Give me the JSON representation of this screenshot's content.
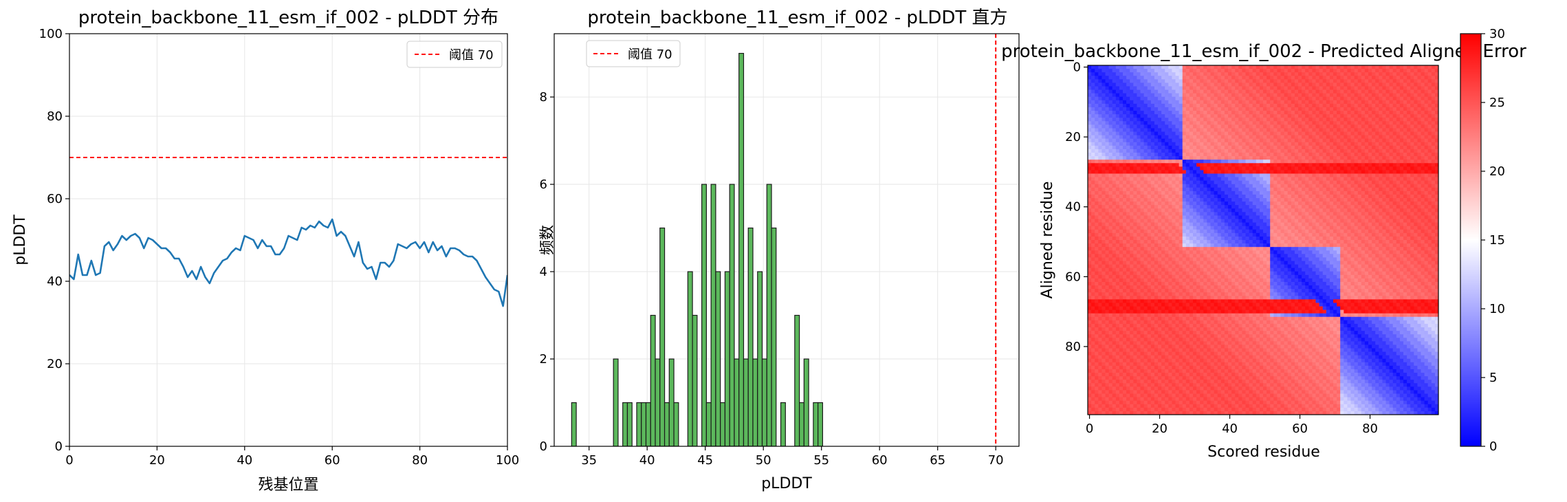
{
  "chart_data": [
    {
      "type": "line",
      "title": "protein_backbone_11_esm_if_002 - pLDDT 分布",
      "xlabel": "残基位置",
      "ylabel": "pLDDT",
      "xlim": [
        0,
        100
      ],
      "ylim": [
        0,
        100
      ],
      "xticks": [
        0,
        20,
        40,
        60,
        80,
        100
      ],
      "yticks": [
        0,
        20,
        40,
        60,
        80,
        100
      ],
      "grid": true,
      "legend_position": "top-right",
      "series": [
        {
          "name": "",
          "color": "#1f77b4",
          "x": [
            0,
            1,
            2,
            3,
            4,
            5,
            6,
            7,
            8,
            9,
            10,
            11,
            12,
            13,
            14,
            15,
            16,
            17,
            18,
            19,
            20,
            21,
            22,
            23,
            24,
            25,
            26,
            27,
            28,
            29,
            30,
            31,
            32,
            33,
            34,
            35,
            36,
            37,
            38,
            39,
            40,
            41,
            42,
            43,
            44,
            45,
            46,
            47,
            48,
            49,
            50,
            51,
            52,
            53,
            54,
            55,
            56,
            57,
            58,
            59,
            60,
            61,
            62,
            63,
            64,
            65,
            66,
            67,
            68,
            69,
            70,
            71,
            72,
            73,
            74,
            75,
            76,
            77,
            78,
            79,
            80,
            81,
            82,
            83,
            84,
            85,
            86,
            87,
            88,
            89,
            90,
            91,
            92,
            93,
            94,
            95,
            96,
            97,
            98,
            99,
            100
          ],
          "y": [
            41.5,
            40.5,
            46.5,
            41.5,
            41.5,
            45.0,
            41.5,
            42.0,
            48.5,
            49.5,
            47.5,
            49.0,
            51.0,
            50.0,
            51.0,
            51.5,
            50.5,
            48.0,
            50.5,
            50.0,
            49.0,
            48.0,
            48.0,
            47.0,
            45.5,
            45.5,
            43.5,
            41.0,
            42.5,
            40.5,
            43.5,
            41.0,
            39.5,
            42.0,
            43.5,
            45.0,
            45.5,
            47.0,
            48.0,
            47.5,
            51.0,
            50.5,
            50.0,
            48.0,
            50.0,
            48.5,
            48.5,
            46.5,
            46.5,
            48.0,
            51.0,
            50.5,
            50.0,
            53.0,
            52.5,
            53.5,
            53.0,
            54.5,
            53.5,
            53.0,
            55.0,
            51.0,
            52.0,
            51.0,
            48.5,
            46.0,
            49.5,
            44.5,
            43.0,
            43.5,
            40.5,
            44.5,
            44.5,
            43.5,
            45.0,
            49.0,
            48.5,
            48.0,
            49.0,
            49.5,
            48.0,
            49.5,
            47.0,
            49.5,
            47.5,
            48.5,
            46.0,
            48.0,
            48.0,
            47.5,
            46.5,
            46.0,
            46.0,
            45.0,
            43.0,
            41.0,
            39.5,
            38.0,
            37.5,
            34.0,
            41.5
          ]
        },
        {
          "name": "阈值 70",
          "color": "#ff0000",
          "style": "dashed",
          "x": [
            0,
            100
          ],
          "y": [
            70,
            70
          ]
        }
      ]
    },
    {
      "type": "bar",
      "title": "protein_backbone_11_esm_if_002 - pLDDT 直方",
      "xlabel": "pLDDT",
      "ylabel": "频数",
      "xlim": [
        32,
        72
      ],
      "ylim": [
        0,
        9.45
      ],
      "xticks": [
        35,
        40,
        45,
        50,
        55,
        60,
        65,
        70
      ],
      "yticks": [
        0,
        2,
        4,
        6,
        8
      ],
      "grid": true,
      "legend_position": "top-left",
      "bar_color": "#5cb85c",
      "bin_edges": [
        33.5,
        33.9,
        34.3,
        34.7,
        35.1,
        35.5,
        35.9,
        36.3,
        36.7,
        37.1,
        37.5,
        37.9,
        38.3,
        38.7,
        39.1,
        39.5,
        39.9,
        40.3,
        40.7,
        41.1,
        41.5,
        41.9,
        42.3,
        42.7,
        43.1,
        43.5,
        43.9,
        44.3,
        44.7,
        45.1,
        45.5,
        45.9,
        46.3,
        46.7,
        47.1,
        47.5,
        47.9,
        48.3,
        48.7,
        49.1,
        49.5,
        49.9,
        50.3,
        50.7,
        51.1,
        51.5,
        51.9,
        52.3,
        52.7,
        53.1,
        53.5,
        53.9,
        54.3,
        54.7,
        55.1
      ],
      "values": [
        1,
        0,
        0,
        0,
        0,
        0,
        0,
        0,
        0,
        2,
        0,
        1,
        1,
        0,
        1,
        1,
        1,
        3,
        2,
        5,
        1,
        2,
        1,
        0,
        0,
        4,
        3,
        0,
        6,
        1,
        6,
        4,
        1,
        4,
        6,
        2,
        9,
        2,
        5,
        2,
        4,
        2,
        6,
        5,
        0,
        1,
        0,
        0,
        3,
        1,
        2,
        0,
        1,
        1
      ],
      "series": [
        {
          "name": "阈值 70",
          "color": "#ff0000",
          "style": "dashed",
          "x": [
            70,
            70
          ]
        }
      ]
    },
    {
      "type": "heatmap",
      "title": "protein_backbone_11_esm_if_002 - Predicted Aligned Error",
      "xlabel": "Scored residue",
      "ylabel": "Aligned residue",
      "xticks": [
        0,
        20,
        40,
        60,
        80
      ],
      "yticks": [
        0,
        20,
        40,
        60,
        80
      ],
      "size": 100,
      "colormap": "bwr",
      "vmin": 0,
      "vmax": 30,
      "colorbar_ticks": [
        0,
        5,
        10,
        15,
        20,
        25,
        30
      ],
      "diagonal_blocks": [
        [
          0,
          27
        ],
        [
          27,
          52
        ],
        [
          52,
          72
        ],
        [
          72,
          100
        ]
      ],
      "intra_block_error": 8,
      "inter_block_error": 25,
      "high_error_rows": [
        28,
        29,
        30,
        67,
        68,
        69,
        70
      ],
      "grid": false
    }
  ]
}
